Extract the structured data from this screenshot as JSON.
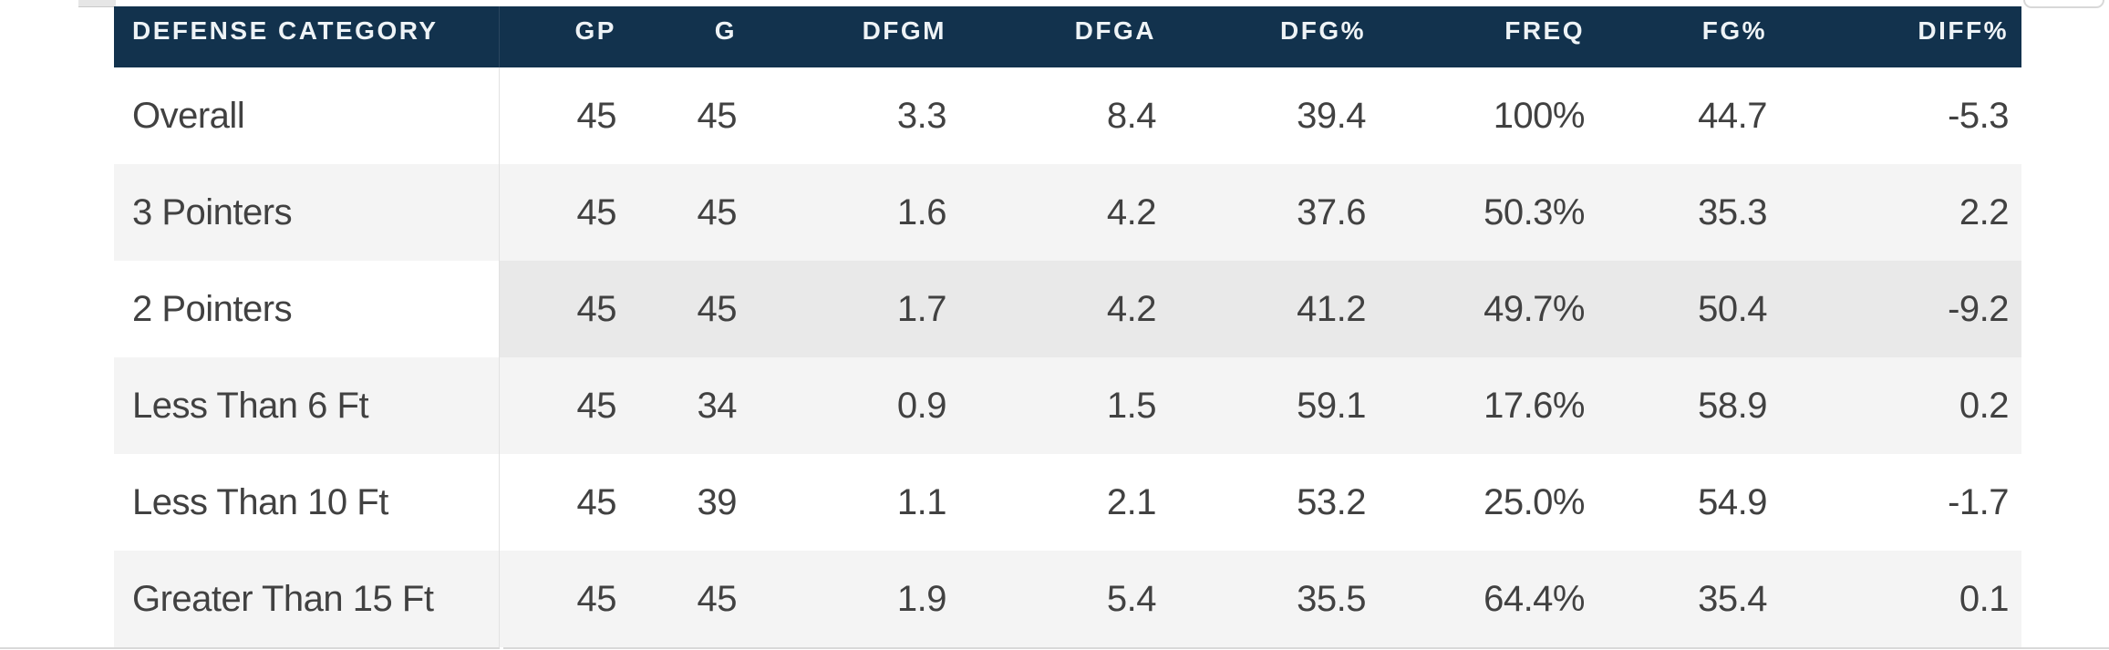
{
  "table": {
    "columns": [
      {
        "name": "defense-category",
        "label": "DEFENSE CATEGORY"
      },
      {
        "name": "gp",
        "label": "GP"
      },
      {
        "name": "g",
        "label": "G"
      },
      {
        "name": "dfgm",
        "label": "DFGM"
      },
      {
        "name": "dfga",
        "label": "DFGA"
      },
      {
        "name": "dfg-pct",
        "label": "DFG%"
      },
      {
        "name": "freq",
        "label": "FREQ"
      },
      {
        "name": "fg-pct",
        "label": "FG%"
      },
      {
        "name": "diff-pct",
        "label": "DIFF%"
      }
    ],
    "rows": [
      {
        "name": "overall",
        "highlight": false,
        "cells": [
          "Overall",
          "45",
          "45",
          "3.3",
          "8.4",
          "39.4",
          "100%",
          "44.7",
          "-5.3"
        ]
      },
      {
        "name": "3-pointers",
        "highlight": false,
        "cells": [
          "3 Pointers",
          "45",
          "45",
          "1.6",
          "4.2",
          "37.6",
          "50.3%",
          "35.3",
          "2.2"
        ]
      },
      {
        "name": "2-pointers",
        "highlight": true,
        "cells": [
          "2 Pointers",
          "45",
          "45",
          "1.7",
          "4.2",
          "41.2",
          "49.7%",
          "50.4",
          "-9.2"
        ]
      },
      {
        "name": "less-than-6-ft",
        "highlight": false,
        "cells": [
          "Less Than 6 Ft",
          "45",
          "34",
          "0.9",
          "1.5",
          "59.1",
          "17.6%",
          "58.9",
          "0.2"
        ]
      },
      {
        "name": "less-than-10-ft",
        "highlight": false,
        "cells": [
          "Less Than 10 Ft",
          "45",
          "39",
          "1.1",
          "2.1",
          "53.2",
          "25.0%",
          "54.9",
          "-1.7"
        ]
      },
      {
        "name": "greater-than-15-ft",
        "highlight": false,
        "cells": [
          "Greater Than 15 Ft",
          "45",
          "45",
          "1.9",
          "5.4",
          "35.5",
          "64.4%",
          "35.4",
          "0.1"
        ]
      }
    ]
  },
  "colors": {
    "header_background": "#12324d",
    "header_text": "#eef3f6",
    "row_white": "#ffffff",
    "row_alt": "#f4f4f4",
    "row_hover": "#e9e9e9",
    "body_text": "#414141",
    "divider": "#e2e2e2"
  }
}
